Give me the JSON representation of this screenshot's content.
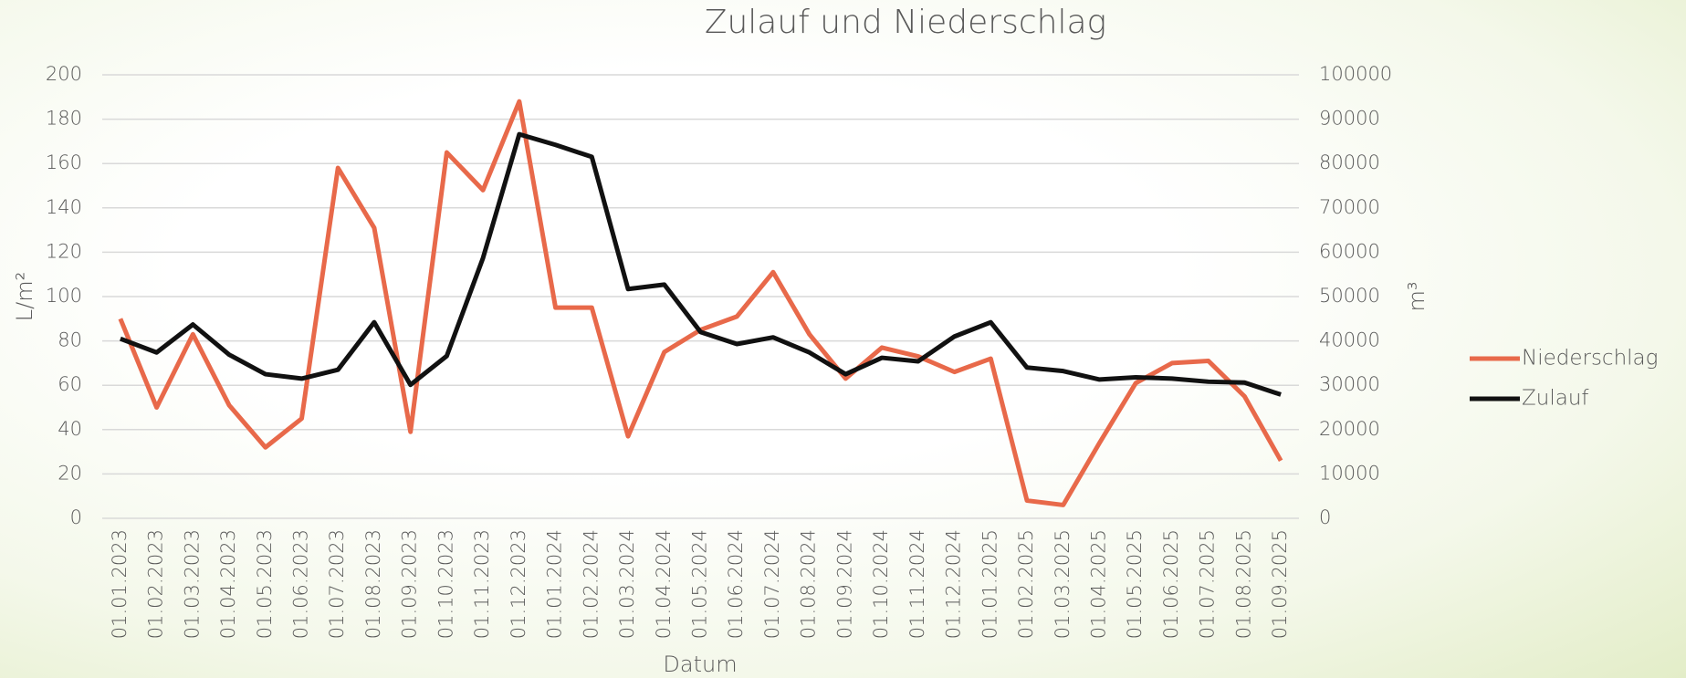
{
  "chart_data": {
    "type": "line",
    "title": "Zulauf und Niederschlag",
    "x_label": "Datum",
    "y_label": "L/m²",
    "y2_label": "m³",
    "categories": [
      "01.01.2023",
      "01.02.2023",
      "01.03.2023",
      "01.04.2023",
      "01.05.2023",
      "01.06.2023",
      "01.07.2023",
      "01.08.2023",
      "01.09.2023",
      "01.10.2023",
      "01.11.2023",
      "01.12.2023",
      "01.01.2024",
      "01.02.2024",
      "01.03.2024",
      "01.04.2024",
      "01.05.2024",
      "01.06.2024",
      "01.07.2024",
      "01.08.2024",
      "01.09.2024",
      "01.10.2024",
      "01.11.2024",
      "01.12.2024",
      "01.01.2025",
      "01.02.2025",
      "01.03.2025",
      "01.04.2025",
      "01.05.2025",
      "01.06.2025",
      "01.07.2025",
      "01.08.2025",
      "01.09.2025"
    ],
    "series": [
      {
        "name": "Niederschlag",
        "color": "#e8694a",
        "values": [
          90,
          50,
          83,
          51,
          32,
          45,
          158,
          131,
          39,
          165,
          148,
          188,
          95,
          95,
          37,
          75,
          85,
          91,
          111,
          83,
          63,
          77,
          73,
          66,
          72,
          8,
          6,
          34,
          61,
          70,
          71,
          55,
          26
        ]
      },
      {
        "name": "Zulauf",
        "color": "#111111",
        "axis": "y2",
        "values": [
          40500,
          37400,
          43700,
          36900,
          32500,
          31500,
          33500,
          44200,
          30100,
          36600,
          58700,
          86600,
          84200,
          81500,
          51700,
          52700,
          42000,
          39300,
          40800,
          37400,
          32500,
          36200,
          35400,
          41000,
          44200,
          34000,
          33200,
          31300,
          31800,
          31500,
          30800,
          30600,
          27900
        ]
      }
    ],
    "ylim": [
      0,
      200
    ],
    "yticks": [
      0,
      20,
      40,
      60,
      80,
      100,
      120,
      140,
      160,
      180,
      200
    ],
    "y2lim": [
      0,
      100000
    ],
    "y2ticks": [
      0,
      10000,
      20000,
      30000,
      40000,
      50000,
      60000,
      70000,
      80000,
      90000,
      100000
    ],
    "grid": true,
    "legend": "right"
  }
}
